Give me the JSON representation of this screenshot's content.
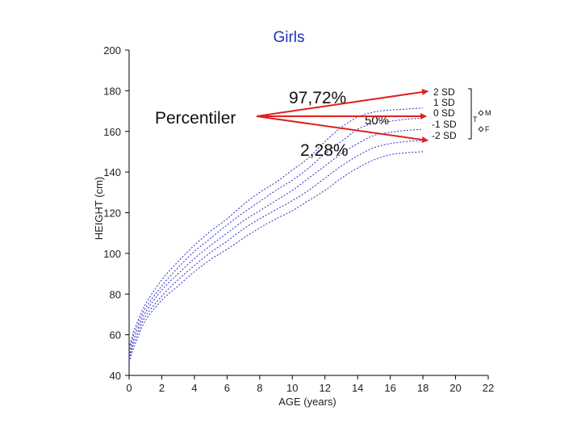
{
  "chart_data": {
    "type": "line",
    "title": "Girls",
    "xlabel": "AGE (years)",
    "ylabel": "HEIGHT (cm)",
    "xlim": [
      0,
      22
    ],
    "ylim": [
      40,
      200
    ],
    "xticks": [
      "0",
      "2",
      "4",
      "6",
      "8",
      "10",
      "12",
      "14",
      "16",
      "18",
      "20",
      "22"
    ],
    "yticks": [
      "40",
      "60",
      "80",
      "100",
      "120",
      "140",
      "160",
      "180",
      "200"
    ],
    "series": [
      {
        "name": "2 SD",
        "x": [
          0,
          0.25,
          0.5,
          1,
          2,
          3,
          4,
          5,
          6,
          7,
          8,
          9,
          10,
          11,
          12,
          13,
          14,
          15,
          16,
          17,
          18
        ],
        "values": [
          53.5,
          61,
          66,
          75,
          87,
          96,
          104,
          111,
          117,
          124,
          130,
          135,
          141,
          147,
          155,
          162,
          167,
          169.5,
          170.5,
          171,
          171.5
        ]
      },
      {
        "name": "1 SD",
        "x": [
          0,
          0.25,
          0.5,
          1,
          2,
          3,
          4,
          5,
          6,
          7,
          8,
          9,
          10,
          11,
          12,
          13,
          14,
          15,
          16,
          17,
          18
        ],
        "values": [
          51.5,
          59,
          64,
          73,
          84,
          93,
          101,
          107.5,
          114,
          120,
          125.5,
          131,
          136,
          142,
          149,
          155,
          161,
          164,
          165,
          166,
          166.5
        ]
      },
      {
        "name": "0 SD",
        "x": [
          0,
          0.25,
          0.5,
          1,
          2,
          3,
          4,
          5,
          6,
          7,
          8,
          9,
          10,
          11,
          12,
          13,
          14,
          15,
          16,
          17,
          18
        ],
        "values": [
          49.5,
          57,
          62,
          71,
          82,
          90,
          97.5,
          104,
          110,
          116,
          121,
          126,
          131,
          137,
          143,
          149,
          154,
          158,
          159.5,
          160.5,
          161
        ]
      },
      {
        "name": "-1 SD",
        "x": [
          0,
          0.25,
          0.5,
          1,
          2,
          3,
          4,
          5,
          6,
          7,
          8,
          9,
          10,
          11,
          12,
          13,
          14,
          15,
          16,
          17,
          18
        ],
        "values": [
          48,
          55,
          60,
          69,
          79,
          87,
          94,
          100.5,
          106,
          112,
          117,
          121.5,
          126,
          131,
          137,
          143,
          148,
          152,
          154,
          155,
          155.5
        ]
      },
      {
        "name": "-2 SD",
        "x": [
          0,
          0.25,
          0.5,
          1,
          2,
          3,
          4,
          5,
          6,
          7,
          8,
          9,
          10,
          11,
          12,
          13,
          14,
          15,
          16,
          17,
          18
        ],
        "values": [
          46.5,
          53,
          58,
          67,
          77,
          84,
          91,
          97,
          102,
          107.5,
          112.5,
          117,
          121,
          126,
          131,
          137,
          142,
          146,
          148.5,
          149.5,
          150
        ]
      }
    ],
    "annotations": {
      "percentiler": "Percentiler",
      "p97": "97,72%",
      "p50": "50%",
      "p2": "2,28%"
    },
    "legend": {
      "labels": [
        "2 SD",
        "1 SD",
        "0 SD",
        "-1 SD",
        "-2 SD"
      ],
      "t_label": "T",
      "m_label": "M",
      "f_label": "F"
    },
    "line_color": "#2a2acb",
    "arrow_color": "#e02020",
    "title_color": "#1f2fbf"
  }
}
